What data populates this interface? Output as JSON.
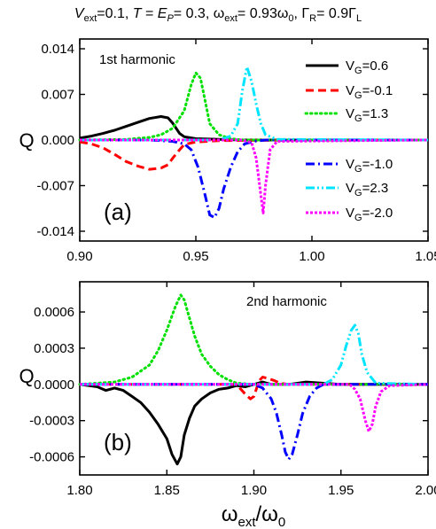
{
  "title": "V_ext=0.1, T=E_P=0.3, ω_ext=0.93ω_0, Γ_R=0.9Γ_L",
  "xlabel_main": "ω",
  "xlabel_sub1": "ext",
  "xlabel_mid": "/ω",
  "xlabel_sub2": "0",
  "panel_a": {
    "label": "(a)",
    "annotation": "1st harmonic",
    "ylabel": "Q"
  },
  "panel_b": {
    "label": "(b)",
    "annotation": "2nd harmonic",
    "ylabel": "Q"
  },
  "legend": [
    {
      "v": "V",
      "sub": "G",
      "rest": "=0.6"
    },
    {
      "v": "V",
      "sub": "G",
      "rest": "=-0.1"
    },
    {
      "v": "V",
      "sub": "G",
      "rest": "=1.3"
    },
    {
      "v": "V",
      "sub": "G",
      "rest": "=-1.0"
    },
    {
      "v": "V",
      "sub": "G",
      "rest": "=2.3"
    },
    {
      "v": "V",
      "sub": "G",
      "rest": "=-2.0"
    }
  ],
  "colors": {
    "vg_0_6": "#000000",
    "vg_m0_1": "#ff0000",
    "vg_1_3": "#00e000",
    "vg_m1_0": "#0000ff",
    "vg_2_3": "#00e5ff",
    "vg_m2_0": "#ff00ff"
  },
  "chart_data": [
    {
      "type": "line",
      "title": "1st harmonic",
      "xlabel": "ω_ext/ω_0",
      "ylabel": "Q",
      "xlim": [
        0.9,
        1.05
      ],
      "ylim": [
        -0.0155,
        0.0155
      ],
      "xticks": [
        "0.90",
        "0.95",
        "1.00",
        "1.05"
      ],
      "xtick_values": [
        0.9,
        0.95,
        1.0,
        1.05
      ],
      "yticks": [
        "0.014",
        "0.007",
        "0.000",
        "-0.007",
        "-0.014"
      ],
      "ytick_values": [
        0.014,
        0.007,
        0.0,
        -0.007,
        -0.014
      ],
      "series": [
        {
          "name": "V_G=0.6",
          "style": "solid",
          "x": [
            0.9,
            0.905,
            0.91,
            0.915,
            0.92,
            0.925,
            0.93,
            0.935,
            0.938,
            0.94,
            0.943,
            0.945,
            0.95,
            0.96,
            0.97,
            1.0,
            1.05
          ],
          "y": [
            0.0003,
            0.0006,
            0.001,
            0.0015,
            0.0021,
            0.0027,
            0.0033,
            0.0036,
            0.0034,
            0.0026,
            0.001,
            0.0005,
            0.0002,
            0.0001,
            0.0,
            0.0,
            0.0
          ]
        },
        {
          "name": "V_G=-0.1",
          "style": "dash",
          "x": [
            0.9,
            0.905,
            0.91,
            0.915,
            0.92,
            0.925,
            0.93,
            0.935,
            0.938,
            0.94,
            0.943,
            0.945,
            0.95,
            0.96,
            1.0,
            1.05
          ],
          "y": [
            -0.0003,
            -0.0006,
            -0.0012,
            -0.0022,
            -0.0033,
            -0.004,
            -0.0045,
            -0.0043,
            -0.0038,
            -0.0028,
            -0.0015,
            -0.0007,
            -0.0003,
            -0.0001,
            0.0,
            0.0
          ]
        },
        {
          "name": "V_G=1.3",
          "style": "dot",
          "x": [
            0.9,
            0.92,
            0.93,
            0.935,
            0.94,
            0.945,
            0.948,
            0.95,
            0.952,
            0.954,
            0.956,
            0.96,
            0.965,
            0.97,
            1.0,
            1.05
          ],
          "y": [
            0.0,
            0.0001,
            0.0004,
            0.0008,
            0.0018,
            0.0045,
            0.0085,
            0.0103,
            0.0095,
            0.006,
            0.0025,
            0.0008,
            0.0002,
            0.0,
            0.0,
            0.0
          ]
        },
        {
          "name": "V_G=-1.0",
          "style": "dashdot",
          "x": [
            0.9,
            0.93,
            0.94,
            0.945,
            0.948,
            0.951,
            0.954,
            0.956,
            0.958,
            0.96,
            0.962,
            0.965,
            0.968,
            0.971,
            0.975,
            0.98,
            1.05
          ],
          "y": [
            0.0,
            0.0,
            -0.0002,
            -0.0006,
            -0.0015,
            -0.0042,
            -0.0085,
            -0.0115,
            -0.0119,
            -0.0105,
            -0.0075,
            -0.0042,
            -0.0018,
            -0.0006,
            -0.0002,
            0.0,
            0.0
          ]
        },
        {
          "name": "V_G=2.3",
          "style": "dashdotdot",
          "x": [
            0.9,
            0.96,
            0.965,
            0.968,
            0.97,
            0.972,
            0.974,
            0.976,
            0.978,
            0.98,
            0.985,
            1.05
          ],
          "y": [
            0.0,
            0.0,
            0.0006,
            0.0025,
            0.0075,
            0.0112,
            0.009,
            0.0055,
            0.0025,
            0.0008,
            0.0001,
            0.0
          ]
        },
        {
          "name": "V_G=-2.0",
          "style": "shortdot",
          "x": [
            0.9,
            0.97,
            0.974,
            0.976,
            0.978,
            0.979,
            0.98,
            0.982,
            0.985,
            1.05
          ],
          "y": [
            0.0,
            0.0,
            -0.0004,
            -0.0028,
            -0.0085,
            -0.0112,
            -0.007,
            -0.0015,
            -0.0002,
            0.0
          ]
        }
      ]
    },
    {
      "type": "line",
      "title": "2nd harmonic",
      "xlabel": "ω_ext/ω_0",
      "ylabel": "Q",
      "xlim": [
        1.8,
        2.0
      ],
      "ylim": [
        -0.00075,
        0.00085
      ],
      "xticks": [
        "1.80",
        "1.85",
        "1.90",
        "1.95",
        "2.00"
      ],
      "xtick_values": [
        1.8,
        1.85,
        1.9,
        1.95,
        2.0
      ],
      "yticks": [
        "0.0006",
        "0.0003",
        "0.0000",
        "-0.0003",
        "-0.0006"
      ],
      "ytick_values": [
        0.0006,
        0.0003,
        0.0,
        -0.0003,
        -0.0006
      ],
      "series": [
        {
          "name": "V_G=0.6",
          "style": "solid",
          "x": [
            1.8,
            1.81,
            1.815,
            1.82,
            1.825,
            1.83,
            1.835,
            1.84,
            1.845,
            1.85,
            1.853,
            1.856,
            1.858,
            1.86,
            1.863,
            1.866,
            1.87,
            1.875,
            1.88,
            1.885,
            1.89,
            1.895,
            1.9,
            1.905,
            1.91,
            1.92,
            1.93,
            1.95,
            2.0
          ],
          "y": [
            0.0,
            -2e-05,
            -5e-05,
            -3e-05,
            -5e-05,
            -0.0001,
            -0.00015,
            -0.00023,
            -0.00033,
            -0.00045,
            -0.00058,
            -0.00066,
            -0.0006,
            -0.00042,
            -0.00028,
            -0.00018,
            -0.00012,
            -7e-05,
            -4e-05,
            -3e-05,
            -1e-05,
            -2e-05,
            0.0,
            2e-05,
            0.0,
            0.0,
            2e-05,
            0.0,
            0.0
          ]
        },
        {
          "name": "V_G=-0.1",
          "style": "dash",
          "x": [
            1.8,
            1.89,
            1.895,
            1.898,
            1.9,
            1.903,
            1.905,
            1.908,
            1.912,
            1.915,
            1.92,
            1.93,
            2.0
          ],
          "y": [
            0.0,
            0.0,
            -8e-05,
            -0.00012,
            -0.0001,
            3e-05,
            6e-05,
            5e-05,
            3e-05,
            1e-05,
            0.0,
            0.0,
            0.0
          ]
        },
        {
          "name": "V_G=1.3",
          "style": "dot",
          "x": [
            1.8,
            1.82,
            1.83,
            1.84,
            1.845,
            1.85,
            1.855,
            1.858,
            1.86,
            1.863,
            1.866,
            1.87,
            1.875,
            1.88,
            1.885,
            1.89,
            1.9,
            2.0
          ],
          "y": [
            0.0,
            2e-05,
            6e-05,
            0.00016,
            0.00028,
            0.00045,
            0.00065,
            0.00074,
            0.0007,
            0.00055,
            0.0004,
            0.00025,
            0.00015,
            8e-05,
            4e-05,
            1e-05,
            0.0,
            0.0
          ]
        },
        {
          "name": "V_G=-1.0",
          "style": "dashdot",
          "x": [
            1.8,
            1.9,
            1.905,
            1.91,
            1.913,
            1.916,
            1.918,
            1.92,
            1.922,
            1.925,
            1.928,
            1.932,
            1.936,
            1.94,
            2.0
          ],
          "y": [
            0.0,
            0.0,
            -3e-05,
            -0.00012,
            -0.00024,
            -0.00042,
            -0.00056,
            -0.00062,
            -0.00058,
            -0.00042,
            -0.00024,
            -0.0001,
            -3e-05,
            0.0,
            0.0
          ]
        },
        {
          "name": "V_G=2.3",
          "style": "dashdotdot",
          "x": [
            1.8,
            1.94,
            1.945,
            1.95,
            1.953,
            1.956,
            1.958,
            1.96,
            1.962,
            1.965,
            1.97,
            2.0
          ],
          "y": [
            0.0,
            0.0,
            4e-05,
            0.00016,
            0.00032,
            0.00045,
            0.00049,
            0.00042,
            0.00025,
            0.0001,
            1e-05,
            0.0
          ]
        },
        {
          "name": "V_G=-2.0",
          "style": "shortdot",
          "x": [
            1.8,
            1.955,
            1.958,
            1.961,
            1.964,
            1.966,
            1.968,
            1.97,
            1.973,
            1.978,
            2.0
          ],
          "y": [
            0.0,
            0.0,
            -4e-05,
            -0.00012,
            -0.0003,
            -0.00039,
            -0.00033,
            -0.00018,
            -6e-05,
            -1e-05,
            0.0
          ]
        }
      ]
    }
  ]
}
